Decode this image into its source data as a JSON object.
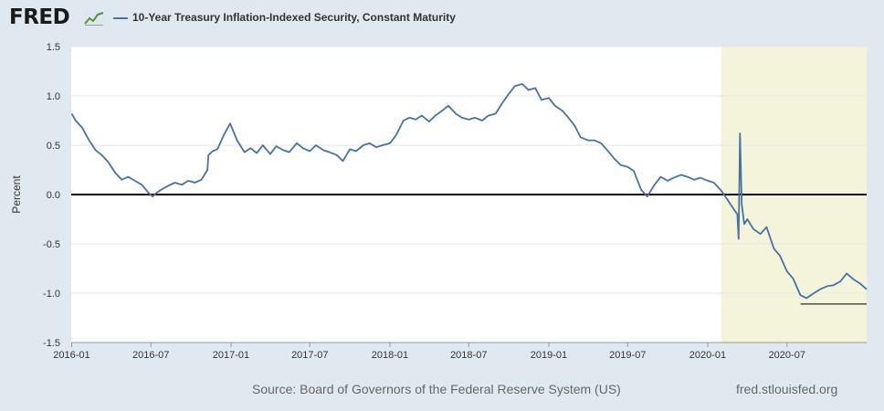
{
  "header": {
    "logo_text": "FRED",
    "logo_icon": "trend-line-icon",
    "series_label": "10-Year Treasury Inflation-Indexed Security, Constant Maturity"
  },
  "colors": {
    "series": "#4572a7",
    "recession_shade": "#f4f4da",
    "zero_line": "#000000",
    "page_background": "#e1e9f0"
  },
  "chart_data": {
    "type": "line",
    "xlabel": "",
    "ylabel": "Percent",
    "ylim": [
      -1.5,
      1.5
    ],
    "yticks": [
      "1.5",
      "1.0",
      "0.5",
      "0.0",
      "-0.5",
      "-1.0",
      "-1.5"
    ],
    "xlim": [
      "2015-12-31",
      "2020-12-31"
    ],
    "xticks": [
      "2016-01",
      "2016-07",
      "2017-01",
      "2017-07",
      "2018-01",
      "2018-07",
      "2019-01",
      "2019-07",
      "2020-01",
      "2020-07"
    ],
    "grid": true,
    "legend": "top-left",
    "shaded_region": [
      "2020-02-01",
      "2020-12-31"
    ],
    "reference_lines": [
      {
        "y": 0.0,
        "from": "2015-12-31",
        "to": "2020-12-31"
      },
      {
        "y": -1.11,
        "from": "2020-08-01",
        "to": "2020-12-31"
      }
    ],
    "series": [
      {
        "name": "10-Year Treasury Inflation-Indexed Security, Constant Maturity",
        "x": [
          "2016-01-01",
          "2016-01-10",
          "2016-01-25",
          "2016-02-10",
          "2016-02-25",
          "2016-03-10",
          "2016-03-25",
          "2016-04-10",
          "2016-04-25",
          "2016-05-10",
          "2016-05-25",
          "2016-06-10",
          "2016-06-25",
          "2016-07-05",
          "2016-07-15",
          "2016-07-25",
          "2016-08-10",
          "2016-08-25",
          "2016-09-10",
          "2016-09-25",
          "2016-10-10",
          "2016-10-25",
          "2016-11-08",
          "2016-11-10",
          "2016-11-20",
          "2016-12-01",
          "2016-12-15",
          "2016-12-30",
          "2017-01-15",
          "2017-02-01",
          "2017-02-15",
          "2017-03-01",
          "2017-03-15",
          "2017-04-01",
          "2017-04-15",
          "2017-05-01",
          "2017-05-15",
          "2017-06-01",
          "2017-06-15",
          "2017-07-01",
          "2017-07-15",
          "2017-08-01",
          "2017-08-15",
          "2017-09-01",
          "2017-09-15",
          "2017-10-01",
          "2017-10-15",
          "2017-11-01",
          "2017-11-15",
          "2017-12-01",
          "2017-12-15",
          "2018-01-01",
          "2018-01-15",
          "2018-02-01",
          "2018-02-15",
          "2018-03-01",
          "2018-03-15",
          "2018-04-01",
          "2018-04-15",
          "2018-05-01",
          "2018-05-15",
          "2018-06-01",
          "2018-06-15",
          "2018-07-01",
          "2018-07-15",
          "2018-08-01",
          "2018-08-15",
          "2018-09-01",
          "2018-09-15",
          "2018-10-01",
          "2018-10-15",
          "2018-11-01",
          "2018-11-15",
          "2018-12-01",
          "2018-12-15",
          "2019-01-01",
          "2019-01-15",
          "2019-02-01",
          "2019-02-15",
          "2019-03-01",
          "2019-03-15",
          "2019-04-01",
          "2019-04-15",
          "2019-05-01",
          "2019-05-15",
          "2019-06-01",
          "2019-06-15",
          "2019-07-01",
          "2019-07-15",
          "2019-08-01",
          "2019-08-15",
          "2019-09-01",
          "2019-09-15",
          "2019-10-01",
          "2019-10-15",
          "2019-11-01",
          "2019-11-15",
          "2019-12-01",
          "2019-12-15",
          "2020-01-01",
          "2020-01-15",
          "2020-02-01",
          "2020-02-15",
          "2020-03-01",
          "2020-03-09",
          "2020-03-12",
          "2020-03-15",
          "2020-03-19",
          "2020-03-25",
          "2020-04-01",
          "2020-04-15",
          "2020-05-01",
          "2020-05-15",
          "2020-06-01",
          "2020-06-15",
          "2020-07-01",
          "2020-07-15",
          "2020-08-01",
          "2020-08-15",
          "2020-09-01",
          "2020-09-15",
          "2020-10-01",
          "2020-10-15",
          "2020-11-01",
          "2020-11-15",
          "2020-12-01",
          "2020-12-15",
          "2020-12-31"
        ],
        "y": [
          0.82,
          0.75,
          0.68,
          0.55,
          0.45,
          0.4,
          0.33,
          0.22,
          0.15,
          0.18,
          0.14,
          0.1,
          0.02,
          -0.02,
          0.02,
          0.05,
          0.09,
          0.12,
          0.1,
          0.14,
          0.12,
          0.15,
          0.25,
          0.4,
          0.44,
          0.46,
          0.6,
          0.72,
          0.55,
          0.43,
          0.47,
          0.42,
          0.5,
          0.41,
          0.49,
          0.45,
          0.43,
          0.52,
          0.47,
          0.44,
          0.5,
          0.45,
          0.43,
          0.4,
          0.34,
          0.46,
          0.44,
          0.5,
          0.52,
          0.48,
          0.5,
          0.52,
          0.6,
          0.75,
          0.78,
          0.76,
          0.8,
          0.74,
          0.8,
          0.85,
          0.9,
          0.82,
          0.78,
          0.76,
          0.78,
          0.75,
          0.8,
          0.82,
          0.92,
          1.02,
          1.1,
          1.12,
          1.06,
          1.08,
          0.96,
          0.98,
          0.9,
          0.85,
          0.78,
          0.7,
          0.58,
          0.55,
          0.55,
          0.52,
          0.45,
          0.36,
          0.3,
          0.28,
          0.24,
          0.05,
          -0.02,
          0.1,
          0.18,
          0.14,
          0.17,
          0.2,
          0.18,
          0.15,
          0.17,
          0.14,
          0.12,
          0.04,
          -0.05,
          -0.15,
          -0.2,
          -0.45,
          0.62,
          -0.1,
          -0.3,
          -0.25,
          -0.35,
          -0.4,
          -0.33,
          -0.55,
          -0.62,
          -0.78,
          -0.85,
          -1.02,
          -1.05,
          -1.0,
          -0.96,
          -0.93,
          -0.92,
          -0.88,
          -0.8,
          -0.86,
          -0.9,
          -0.96
        ]
      }
    ]
  },
  "footer": {
    "source": "Source: Board of Governors of the Federal Reserve System (US)",
    "site": "fred.stlouisfed.org"
  }
}
